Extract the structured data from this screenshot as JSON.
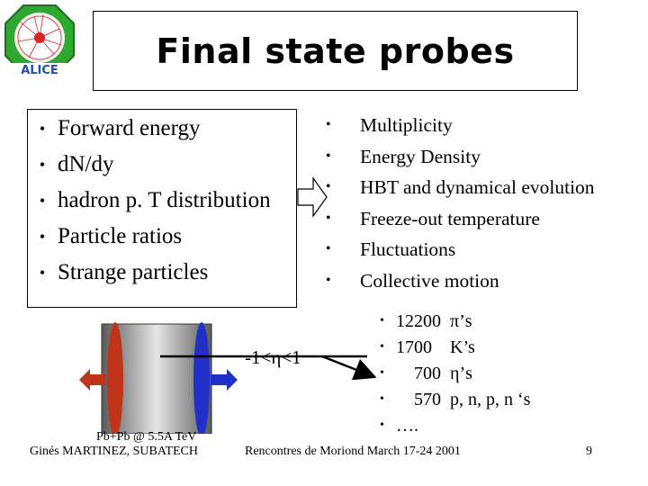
{
  "title": "Final state probes",
  "logo": {
    "text": "ALICE",
    "icon": "alice-logo"
  },
  "left_items": [
    "Forward energy",
    "dN/dy",
    "hadron p. T distribution",
    "Particle ratios",
    "Strange particles"
  ],
  "right_items": [
    "Multiplicity",
    "Energy Density",
    "HBT and dynamical evolution",
    "Freeze-out temperature",
    "Fluctuations",
    "Collective motion"
  ],
  "eta_range": "-1<η<1",
  "counts": [
    {
      "num": "12200",
      "label": "π’s"
    },
    {
      "num": "1700",
      "label": "K’s"
    },
    {
      "num": "700",
      "label": "η’s"
    },
    {
      "num": "570",
      "label": "p, n, p, n ‘s"
    },
    {
      "num": "….",
      "label": ""
    }
  ],
  "collision_label": "Pb+Pb @ 5.5A TeV",
  "author": "Ginés MARTINEZ, SUBATECH",
  "conference": "Rencontres de Moriond March 17-24 2001",
  "page_number": "9",
  "colors": {
    "red_beam": "#c0341a",
    "blue_beam": "#2230c8",
    "logo_green": "#2fa82f",
    "logo_blue": "#1f4fb0"
  }
}
